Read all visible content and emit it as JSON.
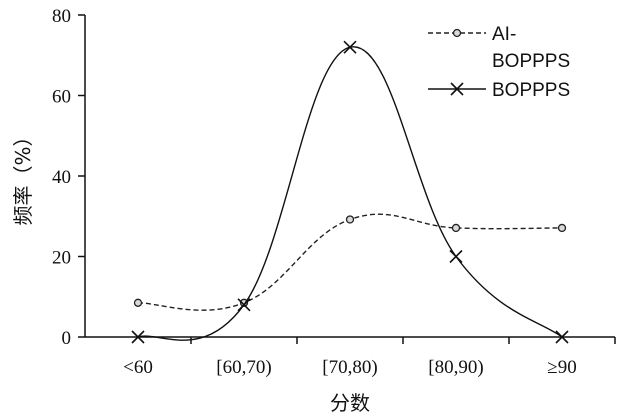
{
  "chart_data": {
    "type": "line",
    "categories": [
      "<60",
      "[60,70)",
      "[70,80)",
      "[80,90)",
      "≥90"
    ],
    "xlabel": "分数",
    "ylabel": "频率（%）",
    "ylim": [
      0,
      80
    ],
    "yticks": [
      0,
      20,
      40,
      60,
      80
    ],
    "grid": false,
    "legend_position": "top-right",
    "series": [
      {
        "name": "AI-BOPPPS",
        "legend_lines": [
          "AI-",
          "BOPPPS"
        ],
        "values": [
          8.5,
          8.5,
          29.2,
          27.1,
          27.1
        ],
        "style": "dashed",
        "marker": "circle",
        "color": "#222222"
      },
      {
        "name": "BOPPPS",
        "legend_lines": [
          "BOPPPS"
        ],
        "values": [
          0,
          8,
          72,
          20,
          0
        ],
        "style": "solid",
        "marker": "x",
        "color": "#111111"
      }
    ]
  }
}
